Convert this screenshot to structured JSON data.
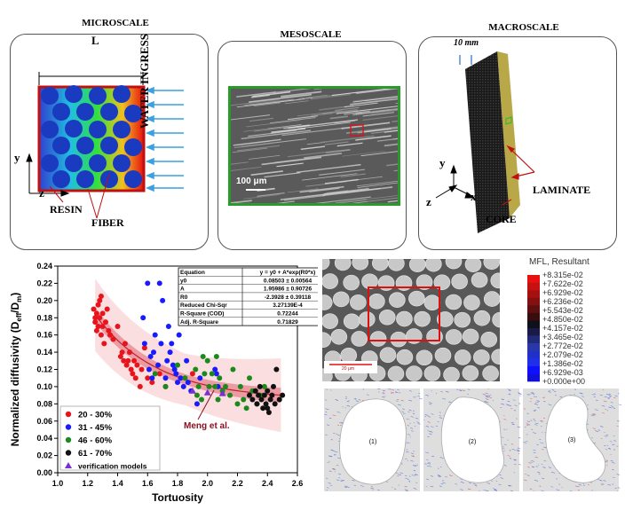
{
  "scales": {
    "micro": {
      "title": "MICROSCALE",
      "length_label": "L",
      "water_label": "WATER INGRESS",
      "resin_label": "RESIN",
      "fiber_label": "FIBER",
      "axis_y": "y",
      "axis_z": "z"
    },
    "meso": {
      "title": "MESOSCALE",
      "scale_bar": "100 μm"
    },
    "macro": {
      "title": "MACROSCALE",
      "dim_label": "10 mm",
      "laminate_label": "LAMINATE",
      "core_label": "CORE",
      "axis_y": "y",
      "axis_z": "z",
      "axis_x": "x"
    }
  },
  "chart_data": {
    "type": "scatter",
    "xlabel": "Tortuosity",
    "ylabel": "Normalized diffusivity (D",
    "ylabel_sub1": "eff",
    "ylabel_mid": "/D",
    "ylabel_sub2": "m",
    "ylabel_end": ")",
    "xlim": [
      1.0,
      2.6
    ],
    "ylim": [
      0.0,
      0.24
    ],
    "x_ticks": [
      "1.0",
      "1.2",
      "1.4",
      "1.6",
      "1.8",
      "2.0",
      "2.2",
      "2.4",
      "2.6"
    ],
    "y_ticks": [
      "0.00",
      "0.02",
      "0.04",
      "0.06",
      "0.08",
      "0.10",
      "0.12",
      "0.14",
      "0.16",
      "0.18",
      "0.20",
      "0.22",
      "0.24"
    ],
    "fit": {
      "y0": 0.08503,
      "A": 1.95986,
      "R0": -2.3928
    },
    "annotation": "Meng et al.",
    "fit_table": [
      [
        "Equation",
        "y = y0 + A*exp(R0*x)"
      ],
      [
        "y0",
        "0.08503 ± 0.00564"
      ],
      [
        "A",
        "1.95986 ± 0.90726"
      ],
      [
        "R0",
        "-2.3928 ± 0.39118"
      ],
      [
        "Reduced Chi-Sqr",
        "3.27139E-4"
      ],
      [
        "R-Square (COD)",
        "0.72244"
      ],
      [
        "Adj. R-Square",
        "0.71829"
      ]
    ],
    "legend": [
      "20 - 30%",
      "31 - 45%",
      "46 - 60%",
      "61 - 70%",
      "verification models"
    ],
    "series": [
      {
        "name": "20 - 30%",
        "color": "#e8141c",
        "points": [
          [
            1.24,
            0.19
          ],
          [
            1.25,
            0.18
          ],
          [
            1.25,
            0.175
          ],
          [
            1.26,
            0.185
          ],
          [
            1.26,
            0.165
          ],
          [
            1.27,
            0.195
          ],
          [
            1.27,
            0.17
          ],
          [
            1.28,
            0.2
          ],
          [
            1.28,
            0.18
          ],
          [
            1.29,
            0.205
          ],
          [
            1.29,
            0.16
          ],
          [
            1.3,
            0.17
          ],
          [
            1.3,
            0.185
          ],
          [
            1.31,
            0.15
          ],
          [
            1.32,
            0.175
          ],
          [
            1.33,
            0.19
          ],
          [
            1.34,
            0.165
          ],
          [
            1.35,
            0.16
          ],
          [
            1.37,
            0.155
          ],
          [
            1.4,
            0.17
          ],
          [
            1.42,
            0.135
          ],
          [
            1.43,
            0.14
          ],
          [
            1.44,
            0.13
          ],
          [
            1.45,
            0.15
          ],
          [
            1.46,
            0.125
          ],
          [
            1.47,
            0.13
          ],
          [
            1.48,
            0.14
          ],
          [
            1.49,
            0.12
          ],
          [
            1.5,
            0.115
          ],
          [
            1.51,
            0.13
          ],
          [
            1.52,
            0.11
          ],
          [
            1.53,
            0.125
          ],
          [
            1.55,
            0.1
          ],
          [
            1.56,
            0.12
          ],
          [
            1.58,
            0.145
          ],
          [
            1.6,
            0.11
          ],
          [
            1.63,
            0.105
          ],
          [
            1.68,
            0.115
          ],
          [
            1.72,
            0.1
          ],
          [
            1.9,
            0.115
          ]
        ]
      },
      {
        "name": "31 - 45%",
        "color": "#1a1aff",
        "points": [
          [
            1.57,
            0.18
          ],
          [
            1.58,
            0.15
          ],
          [
            1.6,
            0.22
          ],
          [
            1.61,
            0.12
          ],
          [
            1.62,
            0.135
          ],
          [
            1.63,
            0.11
          ],
          [
            1.64,
            0.14
          ],
          [
            1.65,
            0.16
          ],
          [
            1.67,
            0.125
          ],
          [
            1.68,
            0.22
          ],
          [
            1.69,
            0.15
          ],
          [
            1.7,
            0.2
          ],
          [
            1.72,
            0.11
          ],
          [
            1.73,
            0.13
          ],
          [
            1.74,
            0.17
          ],
          [
            1.75,
            0.14
          ],
          [
            1.76,
            0.15
          ],
          [
            1.77,
            0.125
          ],
          [
            1.78,
            0.12
          ],
          [
            1.79,
            0.115
          ],
          [
            1.8,
            0.105
          ],
          [
            1.81,
            0.16
          ],
          [
            1.82,
            0.11
          ],
          [
            1.84,
            0.1
          ],
          [
            1.86,
            0.13
          ],
          [
            1.87,
            0.105
          ],
          [
            1.89,
            0.095
          ],
          [
            1.93,
            0.08
          ],
          [
            1.95,
            0.11
          ],
          [
            2.05,
            0.12
          ],
          [
            2.06,
            0.115
          ],
          [
            2.07,
            0.1
          ]
        ]
      },
      {
        "name": "46 - 60%",
        "color": "#1a8a1a",
        "points": [
          [
            1.65,
            0.115
          ],
          [
            1.72,
            0.1
          ],
          [
            1.8,
            0.125
          ],
          [
            1.85,
            0.11
          ],
          [
            1.92,
            0.12
          ],
          [
            1.93,
            0.09
          ],
          [
            1.94,
            0.1
          ],
          [
            1.96,
            0.085
          ],
          [
            1.97,
            0.135
          ],
          [
            1.98,
            0.115
          ],
          [
            2.0,
            0.13
          ],
          [
            2.01,
            0.1
          ],
          [
            2.03,
            0.115
          ],
          [
            2.05,
            0.1
          ],
          [
            2.06,
            0.135
          ],
          [
            2.07,
            0.085
          ],
          [
            2.08,
            0.11
          ],
          [
            2.1,
            0.095
          ],
          [
            2.12,
            0.1
          ],
          [
            2.15,
            0.09
          ],
          [
            2.17,
            0.12
          ],
          [
            2.2,
            0.08
          ],
          [
            2.22,
            0.1
          ],
          [
            2.24,
            0.085
          ],
          [
            2.26,
            0.075
          ],
          [
            2.28,
            0.11
          ],
          [
            2.3,
            0.095
          ],
          [
            2.33,
            0.08
          ],
          [
            2.35,
            0.09
          ],
          [
            2.38,
            0.1
          ]
        ]
      },
      {
        "name": "61 - 70%",
        "color": "#111111",
        "points": [
          [
            2.28,
            0.09
          ],
          [
            2.3,
            0.085
          ],
          [
            2.32,
            0.095
          ],
          [
            2.33,
            0.08
          ],
          [
            2.34,
            0.09
          ],
          [
            2.35,
            0.1
          ],
          [
            2.36,
            0.085
          ],
          [
            2.37,
            0.075
          ],
          [
            2.38,
            0.09
          ],
          [
            2.39,
            0.08
          ],
          [
            2.4,
            0.095
          ],
          [
            2.41,
            0.07
          ],
          [
            2.42,
            0.085
          ],
          [
            2.43,
            0.09
          ],
          [
            2.44,
            0.1
          ],
          [
            2.45,
            0.08
          ],
          [
            2.46,
            0.12
          ],
          [
            2.48,
            0.085
          ],
          [
            2.5,
            0.09
          ],
          [
            2.4,
            0.075
          ]
        ]
      }
    ]
  },
  "micrograph": {
    "scale_bar": "20 μm"
  },
  "mfl": {
    "title": "MFL, Resultant",
    "colors": [
      "#e81010",
      "#c81010",
      "#a61010",
      "#851010",
      "#5e0f10",
      "#3a0d0c",
      "#10101a",
      "#1a1a48",
      "#202a78",
      "#2838a8",
      "#2030c8",
      "#2030e8",
      "#1010ff",
      "#1010d8"
    ],
    "labels": [
      "+8.315e-02",
      "+7.622e-02",
      "+6.929e-02",
      "+6.236e-02",
      "+5.543e-02",
      "+4.850e-02",
      "+4.157e-02",
      "+3.465e-02",
      "+2.772e-02",
      "+2.079e-02",
      "+1.386e-02",
      "+6.929e-03",
      "+0.000e+00"
    ]
  },
  "cells": [
    {
      "label": "(1)"
    },
    {
      "label": "(2)"
    },
    {
      "label": "(3)"
    }
  ]
}
